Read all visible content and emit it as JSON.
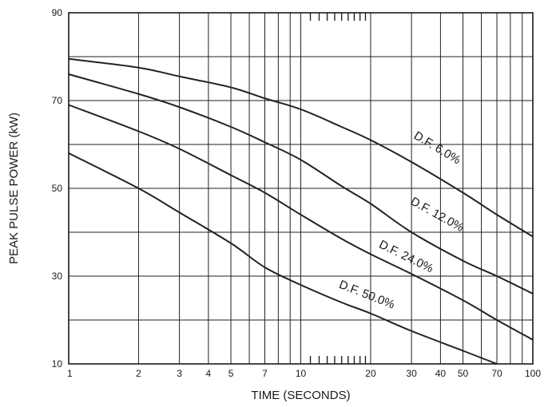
{
  "chart_data": {
    "type": "line",
    "title": "",
    "xlabel": "TIME (SECONDS)",
    "ylabel": "PEAK PULSE POWER (kW)",
    "x_scale": "log",
    "xlim": [
      1,
      100
    ],
    "ylim": [
      10,
      90
    ],
    "grid": true,
    "legend": "none",
    "x_ticks": [
      1,
      2,
      3,
      4,
      5,
      7,
      10,
      20,
      30,
      40,
      50,
      70,
      100
    ],
    "x_tick_labels": [
      "1",
      "2",
      "3",
      "4",
      "5",
      "7",
      "10",
      "20",
      "30",
      "40",
      "50",
      "70",
      "100"
    ],
    "x_gridlines": [
      1,
      2,
      3,
      4,
      5,
      6,
      7,
      8,
      9,
      10,
      20,
      30,
      40,
      50,
      60,
      70,
      80,
      90,
      100
    ],
    "y_ticks": [
      10,
      30,
      50,
      70,
      90
    ],
    "y_tick_labels": [
      "10",
      "30",
      "50",
      "70",
      "90"
    ],
    "y_gridlines": [
      10,
      20,
      30,
      40,
      50,
      60,
      70,
      80,
      90
    ],
    "minor_ticks_x": [
      11,
      12,
      13,
      14,
      15,
      16,
      17,
      18,
      19
    ],
    "line_color": "#222222",
    "series": [
      {
        "name": "D.F. 6.0%",
        "x": [
          1,
          2,
          3,
          5,
          7,
          10,
          15,
          20,
          30,
          50,
          70,
          100
        ],
        "y": [
          79.5,
          77.5,
          75.5,
          73,
          70.5,
          68,
          64,
          61,
          56,
          49,
          44,
          39
        ]
      },
      {
        "name": "D.F. 12.0%",
        "x": [
          1,
          2,
          3,
          5,
          7,
          10,
          15,
          20,
          30,
          50,
          70,
          100
        ],
        "y": [
          76,
          71.5,
          68.5,
          64,
          60.5,
          56.5,
          50.5,
          46.5,
          40,
          33.5,
          30,
          26
        ]
      },
      {
        "name": "D.F. 24.0%",
        "x": [
          1,
          2,
          3,
          5,
          7,
          10,
          15,
          20,
          30,
          50,
          70,
          100
        ],
        "y": [
          69,
          63,
          59,
          53,
          49,
          44,
          38.5,
          35,
          30.5,
          24.5,
          20,
          15.5
        ]
      },
      {
        "name": "D.F. 50.0%",
        "x": [
          1,
          2,
          3,
          5,
          7,
          10,
          15,
          20,
          30,
          50,
          70
        ],
        "y": [
          58,
          50,
          44.5,
          37.5,
          32,
          28,
          24,
          21.5,
          17.5,
          13,
          10
        ]
      }
    ],
    "annotations": [
      {
        "text": "D.F. 6.0%",
        "series": 0,
        "x": 38,
        "y": 58.5
      },
      {
        "text": "D.F. 12.0%",
        "series": 1,
        "x": 38,
        "y": 43.3
      },
      {
        "text": "D.F. 24.0%",
        "series": 2,
        "x": 28,
        "y": 33.7
      },
      {
        "text": "D.F. 50.0%",
        "series": 3,
        "x": 19,
        "y": 25.0
      }
    ]
  }
}
